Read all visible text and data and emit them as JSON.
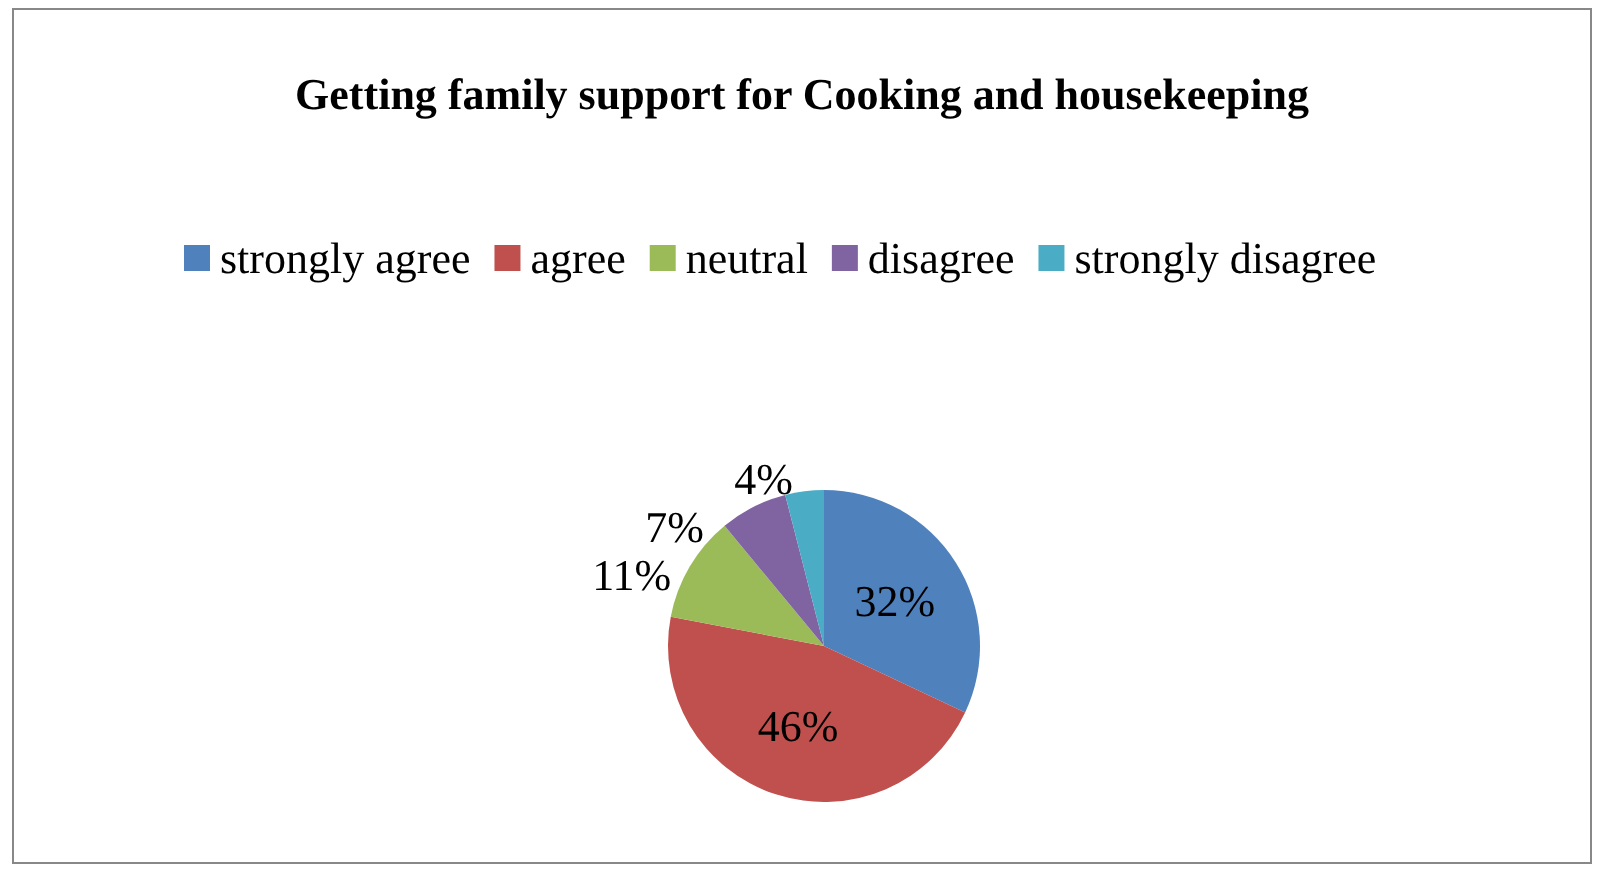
{
  "chart_data": {
    "type": "pie",
    "title": "Getting family support for Cooking and housekeeping",
    "categories": [
      "strongly agree",
      "agree",
      "neutral",
      "disagree",
      "strongly disagree"
    ],
    "values": [
      32,
      46,
      11,
      7,
      4
    ],
    "colors": [
      "#4f81bd",
      "#c0504d",
      "#9bbb59",
      "#8064a2",
      "#4bacc6"
    ],
    "value_labels": [
      "32%",
      "46%",
      "11%",
      "7%",
      "4%"
    ],
    "legend": "top"
  }
}
